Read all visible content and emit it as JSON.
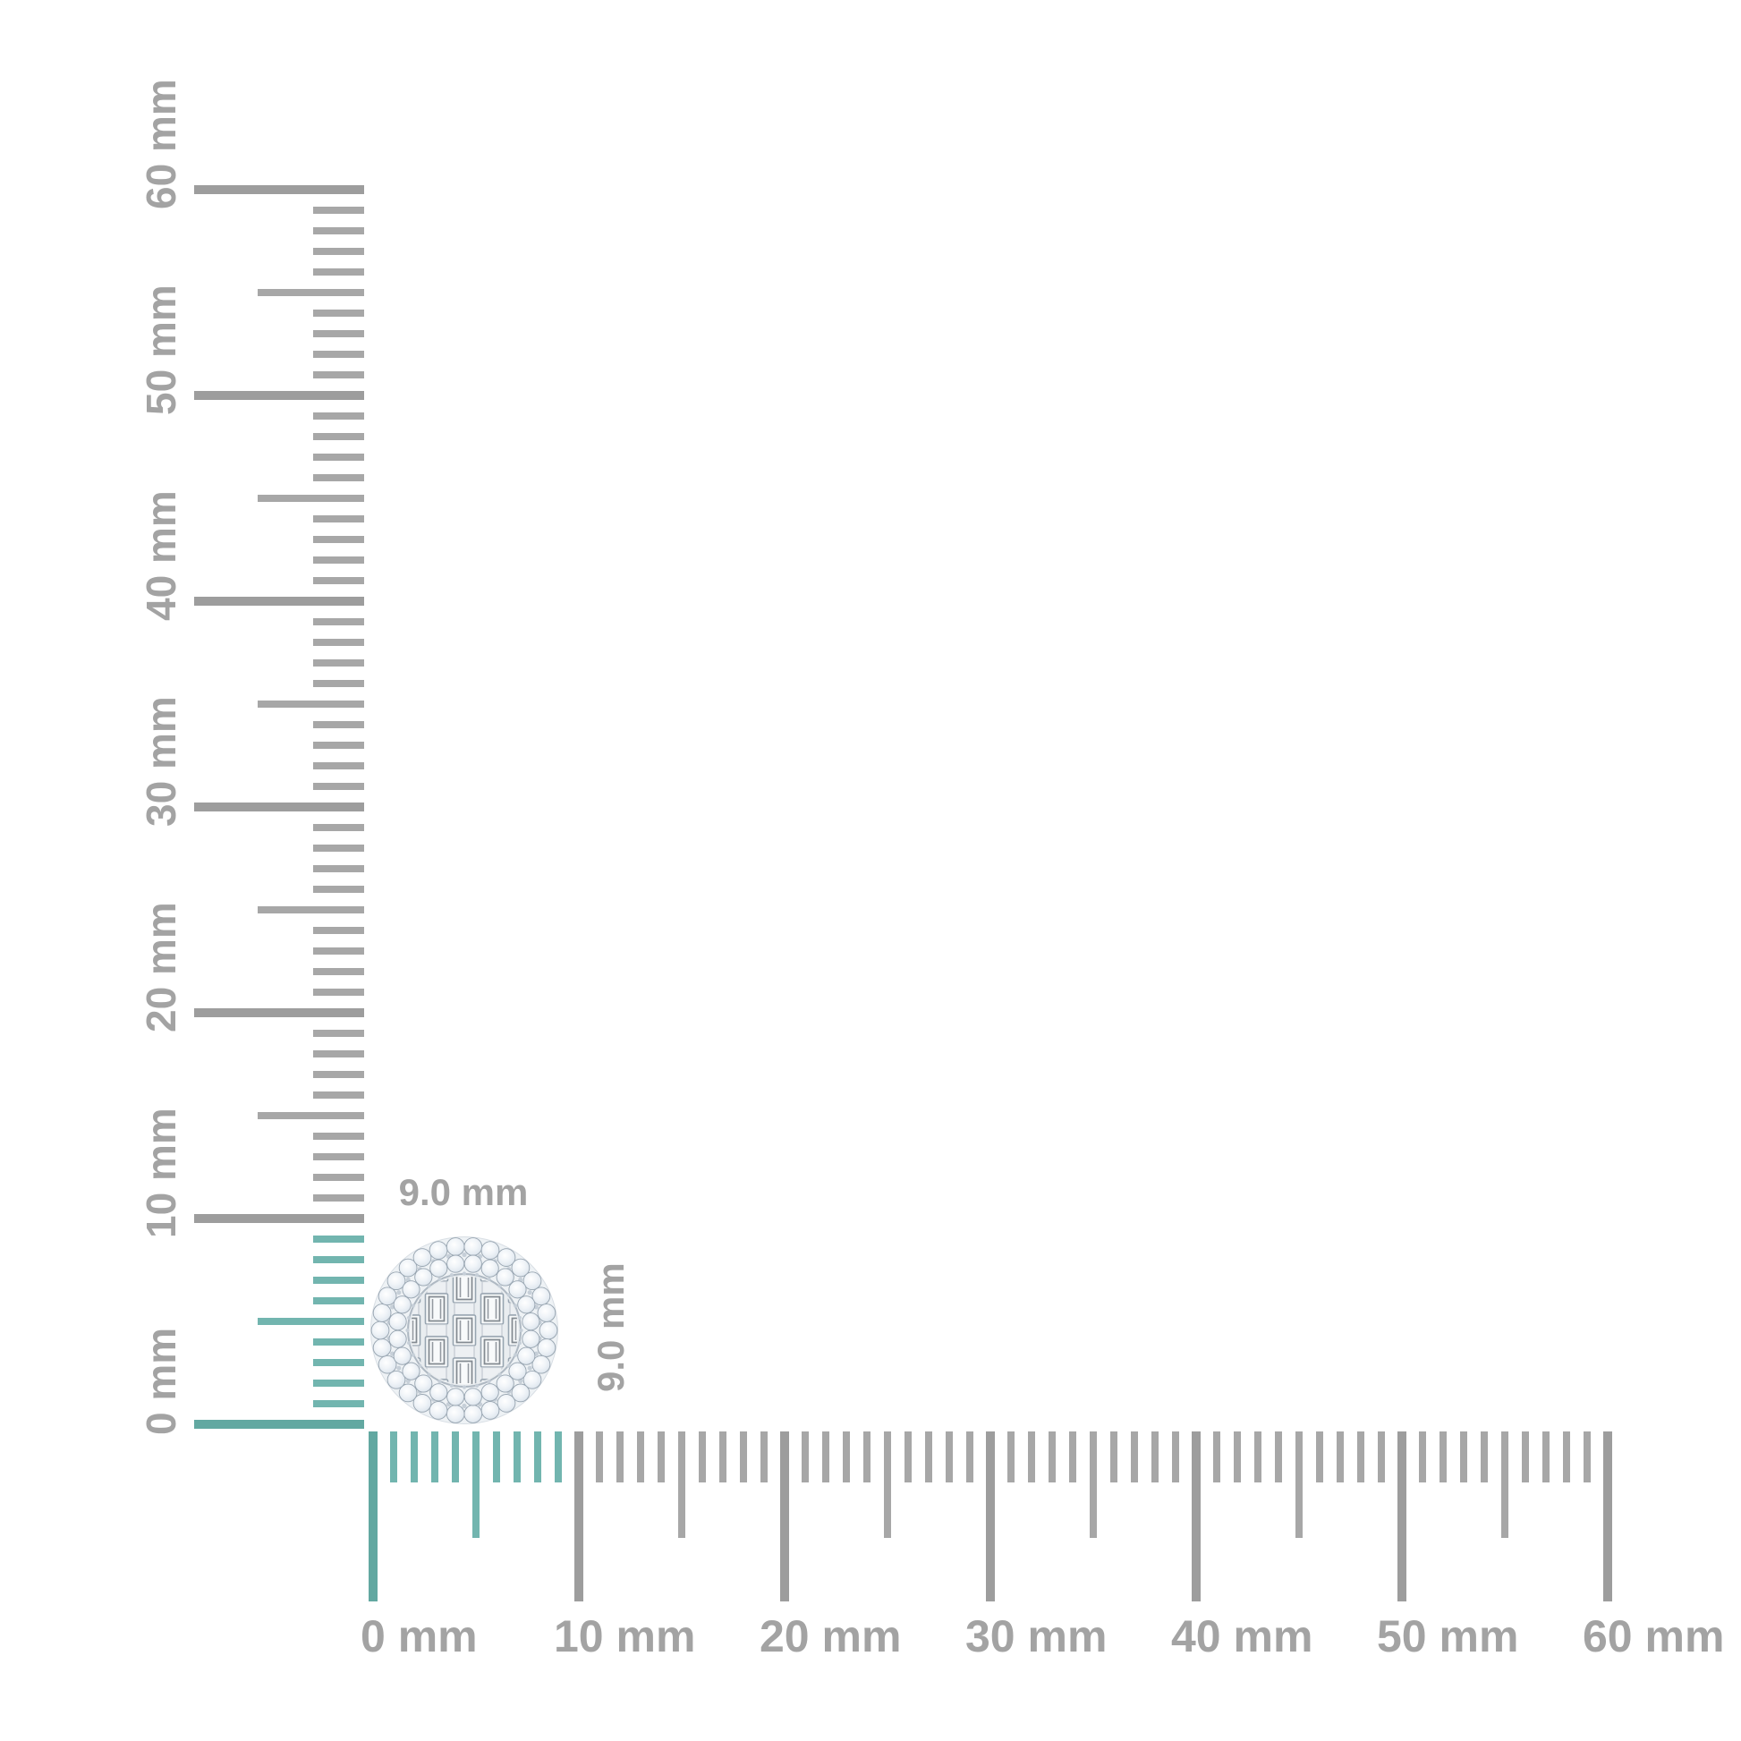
{
  "scene": {
    "background": "#ffffff",
    "description_unit": "mm"
  },
  "rulers": {
    "min_mm": 0,
    "max_mm": 60,
    "label_step_mm": 10,
    "medium_tick_mm": 5,
    "highlight_max_mm": 9,
    "vertical_labels": [
      "0 mm",
      "10 mm",
      "20 mm",
      "30 mm",
      "40 mm",
      "50 mm",
      "60 mm"
    ],
    "horizontal_labels": [
      "0 mm",
      "10 mm",
      "20 mm",
      "30 mm",
      "40 mm",
      "50 mm",
      "60 mm"
    ],
    "colors": {
      "tick_gray_minor": "#a7a7a7",
      "tick_gray_major": "#9d9d9d",
      "tick_teal_minor": "#72b5af",
      "tick_teal_major": "#62a8a1",
      "label_gray": "#a3a3a3"
    }
  },
  "item": {
    "name": "round diamond cluster stud",
    "width_label": "9.0 mm",
    "height_label": "9.0 mm",
    "label_color": "#a3a3a3",
    "colors": {
      "base_metal": "#eef2f5",
      "base_rim": "#d8dee4",
      "plate_metal": "#e9edf0",
      "plate_rim": "#aeb8c2",
      "stone_edge": "#97a4b0",
      "stone_light": "#ffffff",
      "stone_mid": "#e2e9f0",
      "stone_dark": "#bcc8d3",
      "bead": "#c6cfd8",
      "baguette_fill": "#f8fafb",
      "baguette_line": "#5d666f",
      "metal_cell_fill": "#edf0f3",
      "metal_cell_edge": "#c2c9d0"
    }
  }
}
